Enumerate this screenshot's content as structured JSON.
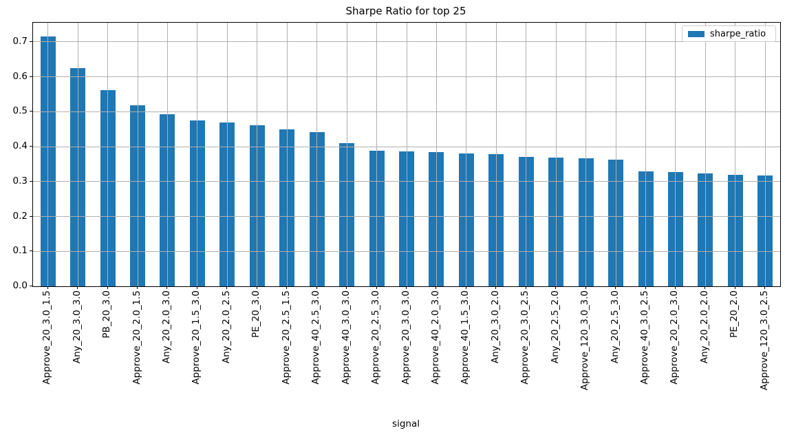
{
  "title": "Sharpe Ratio for top 25",
  "chart_data": {
    "type": "bar",
    "title": "Sharpe Ratio for top 25",
    "xlabel": "signal",
    "ylabel": "",
    "legend": [
      "sharpe_ratio"
    ],
    "legend_position": "upper right",
    "bar_color": "#1f77b4",
    "grid": true,
    "grid_color": "#b0b0b0",
    "grid_above_bars": true,
    "ylim": [
      0,
      0.755
    ],
    "yticks": [
      0.0,
      0.1,
      0.2,
      0.3,
      0.4,
      0.5,
      0.6,
      0.7
    ],
    "categories": [
      "Approve_20_3.0_1.5",
      "Any_20_3.0_3.0",
      "PB_20_3.0",
      "Approve_20_2.0_1.5",
      "Any_20_2.0_3.0",
      "Approve_20_1.5_3.0",
      "Any_20_2.0_2.5",
      "PE_20_3.0",
      "Approve_20_2.5_1.5",
      "Approve_40_2.5_3.0",
      "Approve_40_3.0_3.0",
      "Approve_20_2.5_3.0",
      "Approve_20_3.0_3.0",
      "Approve_40_2.0_3.0",
      "Approve_40_1.5_3.0",
      "Any_20_3.0_2.0",
      "Approve_20_3.0_2.5",
      "Any_20_2.5_2.0",
      "Approve_120_3.0_3.0",
      "Any_20_2.5_3.0",
      "Approve_40_3.0_2.5",
      "Approve_20_2.0_3.0",
      "Any_20_2.0_2.0",
      "PE_20_2.0",
      "Approve_120_3.0_2.5"
    ],
    "values": [
      0.715,
      0.625,
      0.561,
      0.518,
      0.492,
      0.476,
      0.47,
      0.462,
      0.45,
      0.442,
      0.411,
      0.388,
      0.386,
      0.384,
      0.381,
      0.379,
      0.371,
      0.368,
      0.366,
      0.362,
      0.329,
      0.327,
      0.323,
      0.32,
      0.317
    ]
  }
}
